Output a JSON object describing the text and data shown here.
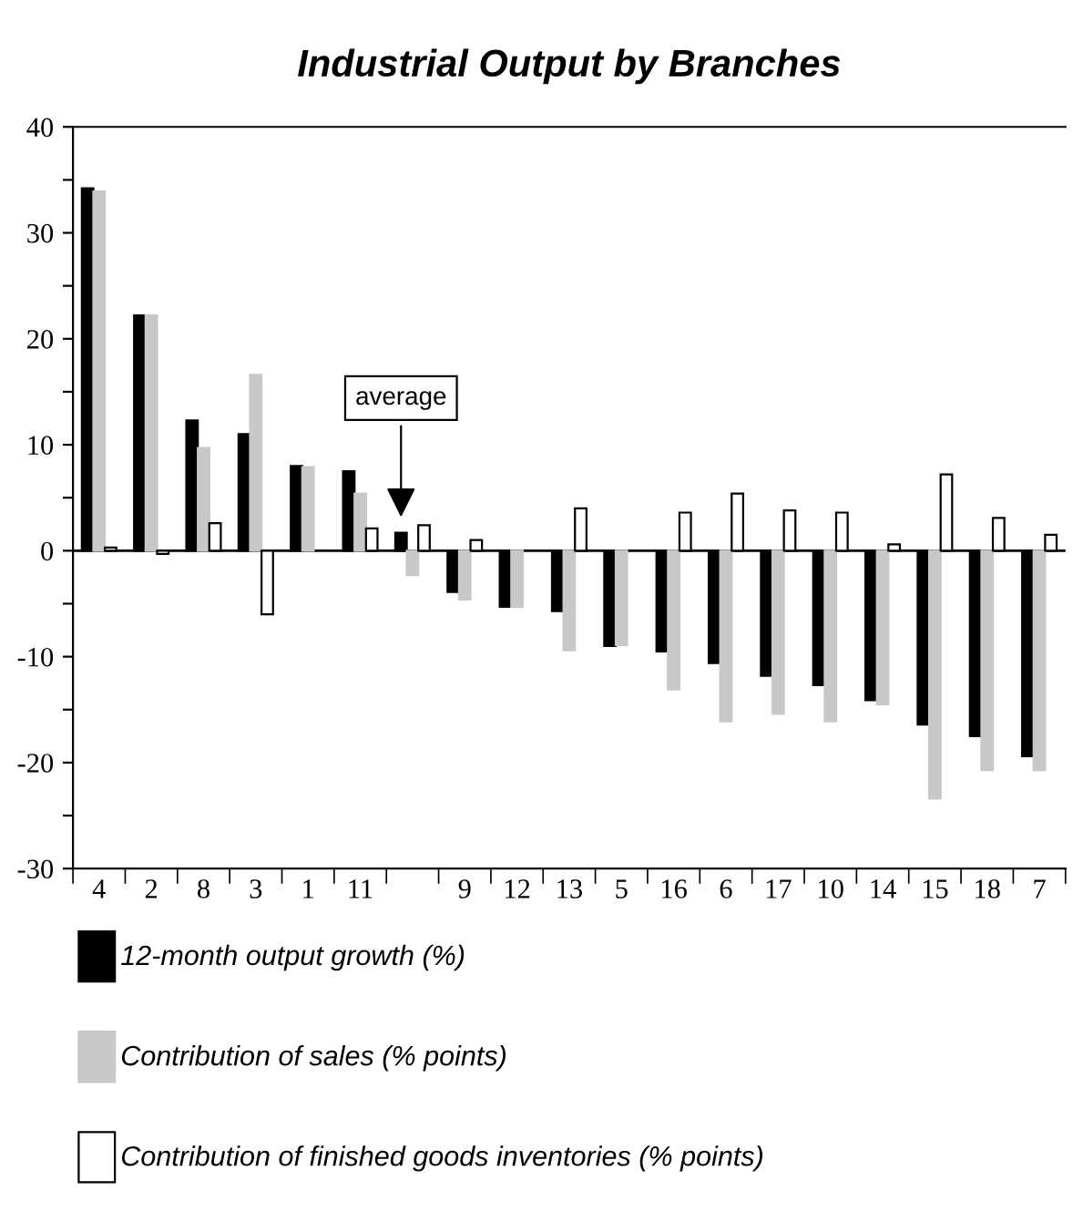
{
  "chart_data": {
    "type": "bar",
    "title": "Industrial Output by Branches",
    "categories": [
      "4",
      "2",
      "8",
      "3",
      "1",
      "11",
      null,
      "9",
      "12",
      "13",
      "5",
      "16",
      "6",
      "17",
      "10",
      "14",
      "15",
      "18",
      "7"
    ],
    "series": [
      {
        "name": "12-month output growth (%)",
        "color": "#000000",
        "values": [
          34.2,
          22.2,
          12.3,
          11.0,
          8.0,
          7.5,
          1.7,
          -3.9,
          -5.3,
          -5.7,
          -9.0,
          -9.5,
          -10.6,
          -11.8,
          -12.7,
          -14.1,
          -16.4,
          -17.5,
          -19.4
        ]
      },
      {
        "name": "Contribution of sales (% points)",
        "color": "#c8c8c8",
        "values": [
          33.9,
          22.2,
          9.7,
          16.6,
          7.9,
          5.4,
          -2.3,
          -4.6,
          -5.3,
          -9.4,
          -8.9,
          -13.1,
          -16.1,
          -15.4,
          -16.1,
          -14.5,
          -23.4,
          -20.7,
          -20.7
        ]
      },
      {
        "name": "Contribution of finished goods inventories (% points)",
        "color": "#ffffff",
        "values": [
          0.3,
          -0.3,
          2.6,
          -6.0,
          null,
          2.1,
          2.4,
          1.0,
          null,
          4.0,
          null,
          3.6,
          5.4,
          3.8,
          3.6,
          0.6,
          7.2,
          3.1,
          1.5
        ]
      }
    ],
    "ylim": [
      -30,
      40
    ],
    "yticks": [
      -30,
      {
        "value": -25,
        "label": null
      },
      -20,
      {
        "value": -15,
        "label": null
      },
      -10,
      {
        "value": -5,
        "label": null
      },
      0,
      {
        "value": 5,
        "label": null
      },
      10,
      {
        "value": 15,
        "label": null
      },
      20,
      {
        "value": 25,
        "label": null
      },
      30,
      {
        "value": 35,
        "label": null
      },
      40
    ],
    "annotations": [
      "average"
    ],
    "ref_lines": [
      {
        "axis": "y",
        "value": 0,
        "color": "#000000",
        "line_style": "solid"
      }
    ],
    "grid": false,
    "legend": "bottom"
  }
}
